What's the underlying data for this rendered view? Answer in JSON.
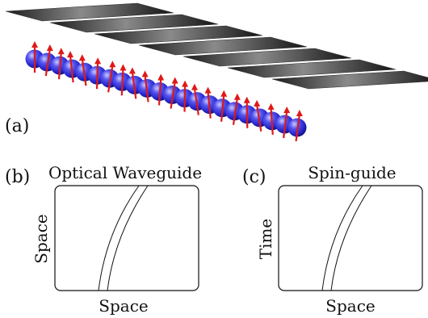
{
  "panel_a": {
    "label": "(a)"
  },
  "panel_b": {
    "label": "(b)",
    "title": "Optical Waveguide",
    "xlabel": "Space",
    "ylabel": "Space"
  },
  "panel_c": {
    "label": "(c)",
    "title": "Spin-guide",
    "xlabel": "Space",
    "ylabel": "Time"
  },
  "colors": {
    "spin_sphere": "#2a2ad8",
    "spin_arrow": "#e01818",
    "plate_dark": "#141414",
    "plate_light": "#f2f2f2",
    "guide_line": "#111111"
  },
  "icons": {
    "spin": "blue-sphere-with-red-arrow",
    "field_plate": "gradient-parallelogram"
  }
}
